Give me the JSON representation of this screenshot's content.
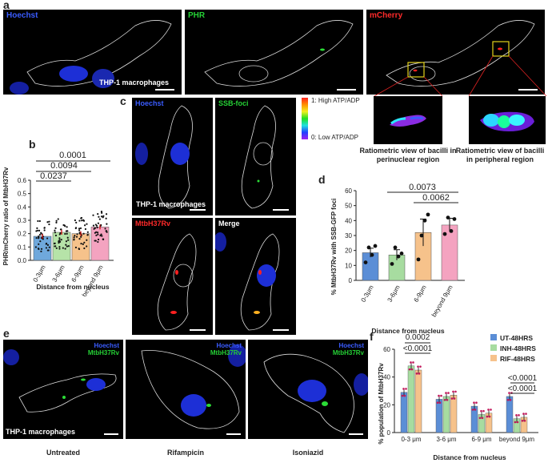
{
  "panels": {
    "a": {
      "letter": "a",
      "channels": [
        "Hoechst",
        "PHR",
        "mCherry"
      ],
      "cell_label": "THP-1 macrophages",
      "ratiometric_captions": [
        "Ratiometric view of bacilli in perinuclear region",
        "Ratiometric view of bacilli in peripheral region"
      ]
    },
    "b": {
      "letter": "b",
      "ylabel": "PHR/mCherry ratio of MtbH37Rv",
      "xlabel": "Distance from nucleus",
      "p_values": [
        "0.0001",
        "0.0094",
        "0.0237"
      ]
    },
    "c": {
      "letter": "c",
      "labels": [
        "Hoechst",
        "SSB-foci",
        "MtbH37Rv",
        "Merge"
      ],
      "cell_label": "THP-1 macrophages",
      "colorbar_high": "1: High ATP/ADP",
      "colorbar_low": "0: Low ATP/ADP"
    },
    "d": {
      "letter": "d",
      "ylabel": "% MtbH37Rv with SSB-GFP foci",
      "xlabel": "Distance from nucleus",
      "p_values": [
        "0.0073",
        "0.0062"
      ]
    },
    "e": {
      "letter": "e",
      "hoechst": "Hoechst",
      "mtb": "MtbH37Rv",
      "cell_label": "THP-1 macrophages",
      "captions": [
        "Untreated",
        "Rifampicin",
        "Isoniazid"
      ]
    },
    "f": {
      "letter": "f",
      "ylabel": "% population of MtbH37Rv",
      "xlabel": "Distance from nucleus",
      "p_values_top": [
        "0.0002",
        "<0.0001"
      ],
      "p_values_right": [
        "<0.0001",
        "<0.0001"
      ]
    }
  },
  "chart_data": [
    {
      "type": "bar",
      "panel": "b",
      "categories": [
        "0-3μm",
        "3-6μm",
        "6-9μm",
        "beyond 9μm"
      ],
      "values": [
        0.18,
        0.21,
        0.2,
        0.25
      ],
      "colors": [
        "#6fa8dc",
        "#b6e3a8",
        "#f6c28b",
        "#f4a3c0"
      ],
      "ylim": [
        0.0,
        0.6
      ],
      "yticks": [
        "0.0",
        "0.1",
        "0.2",
        "0.3",
        "0.4",
        "0.5",
        "0.6"
      ]
    },
    {
      "type": "bar",
      "panel": "d",
      "categories": [
        "0-3μm",
        "3-6μm",
        "6-9μm",
        "beyond 9μm"
      ],
      "values": [
        18.5,
        17,
        32,
        37
      ],
      "errors": [
        3,
        3.5,
        9,
        4.5
      ],
      "colors": [
        "#5b8ed6",
        "#a7dca0",
        "#f6c28b",
        "#f4a3c0"
      ],
      "ylim": [
        0,
        60
      ],
      "yticks": [
        "0",
        "10",
        "20",
        "30",
        "40",
        "50",
        "60"
      ]
    },
    {
      "type": "bar",
      "panel": "f",
      "categories": [
        "0-3 μm",
        "3-6 μm",
        "6-9 μm",
        "beyond 9μm"
      ],
      "series": [
        {
          "name": "UT-48HRS",
          "values": [
            29,
            24,
            19,
            26
          ],
          "color": "#5b8ed6"
        },
        {
          "name": "INH-48HRS",
          "values": [
            48,
            26,
            13,
            10
          ],
          "color": "#a7dca0"
        },
        {
          "name": "RIF-48HRS",
          "values": [
            45,
            27,
            14,
            11
          ],
          "color": "#f6c28b"
        }
      ],
      "ylim": [
        0,
        60
      ],
      "yticks": [
        "0",
        "20",
        "40",
        "60"
      ]
    }
  ]
}
